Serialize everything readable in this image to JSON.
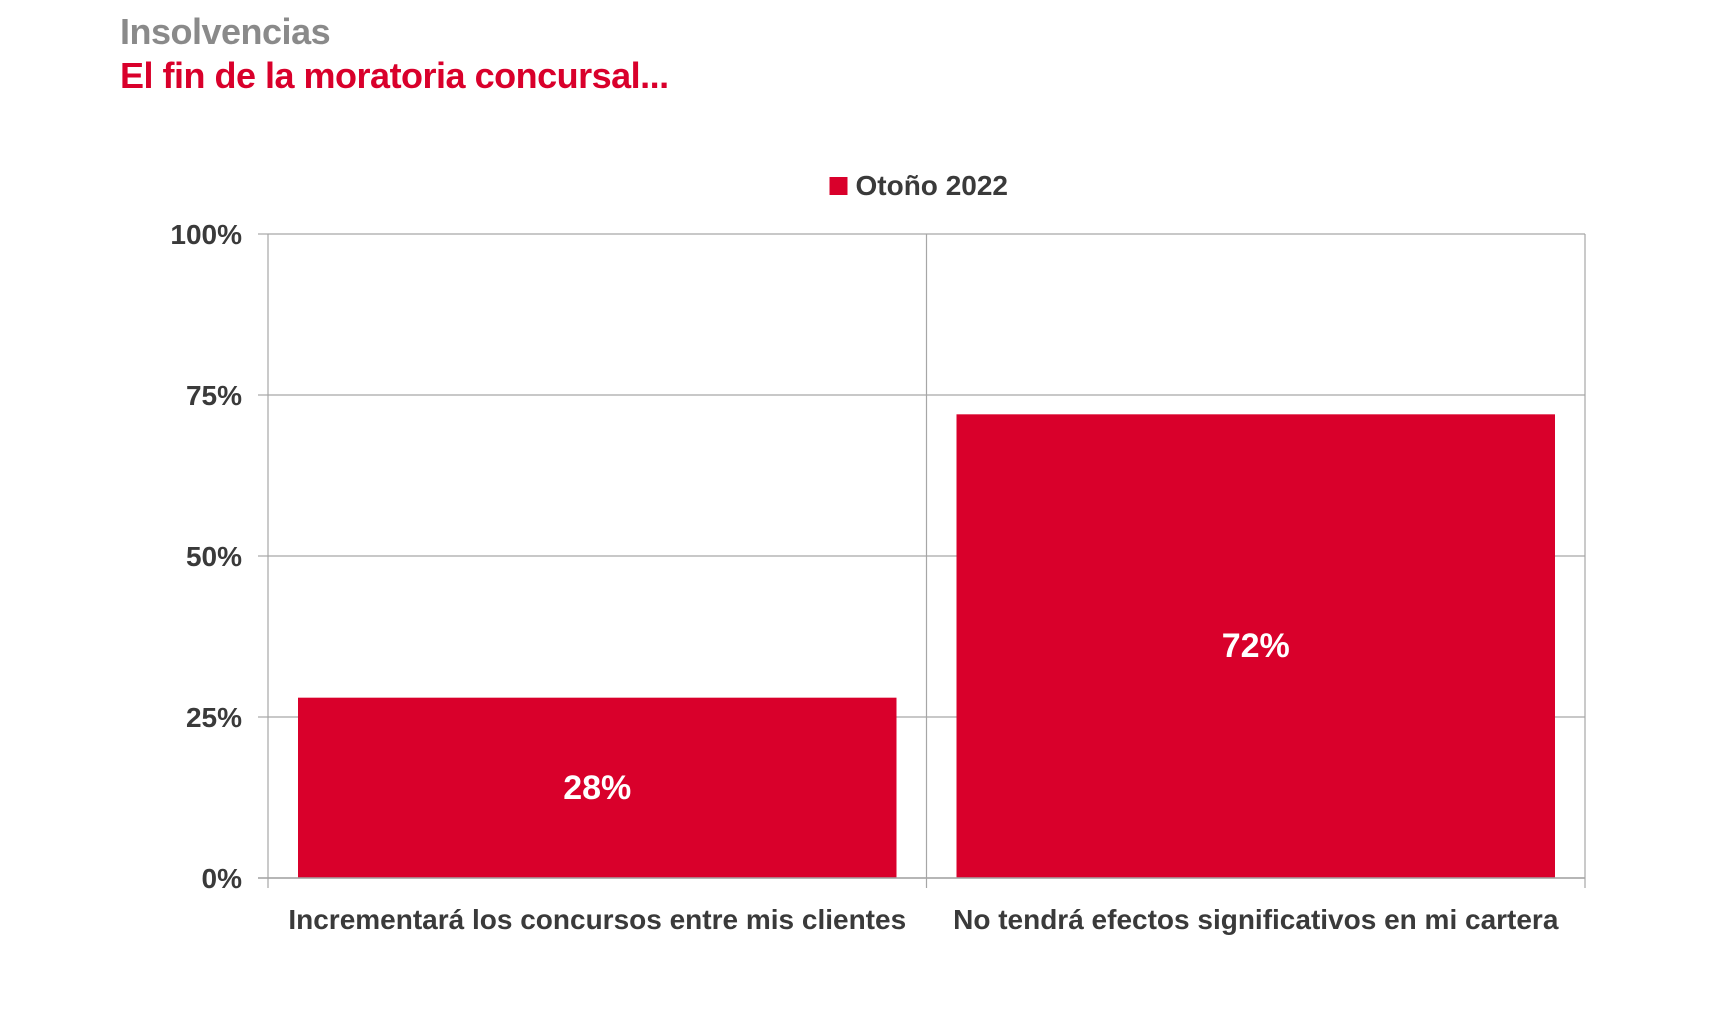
{
  "header": {
    "kicker": "Insolvencias",
    "title": "El fin de la moratoria concursal..."
  },
  "colors": {
    "bar": "#d9002b",
    "title": "#d9002b",
    "kicker": "#8a8a8a",
    "text": "#3a3a3a",
    "grid": "#a6a6a6"
  },
  "chart_data": {
    "type": "bar",
    "categories": [
      "Incrementará los concursos entre mis clientes",
      "No tendrá efectos significativos en mi cartera"
    ],
    "series": [
      {
        "name": "Otoño 2022",
        "values": [
          28,
          72
        ],
        "labels": [
          "28%",
          "72%"
        ]
      }
    ],
    "ylim": [
      0,
      100
    ],
    "yticks": [
      0,
      25,
      50,
      75,
      100
    ],
    "ytick_labels": [
      "0%",
      "25%",
      "50%",
      "75%",
      "100%"
    ],
    "legend_position": "top-center",
    "grid": true
  }
}
